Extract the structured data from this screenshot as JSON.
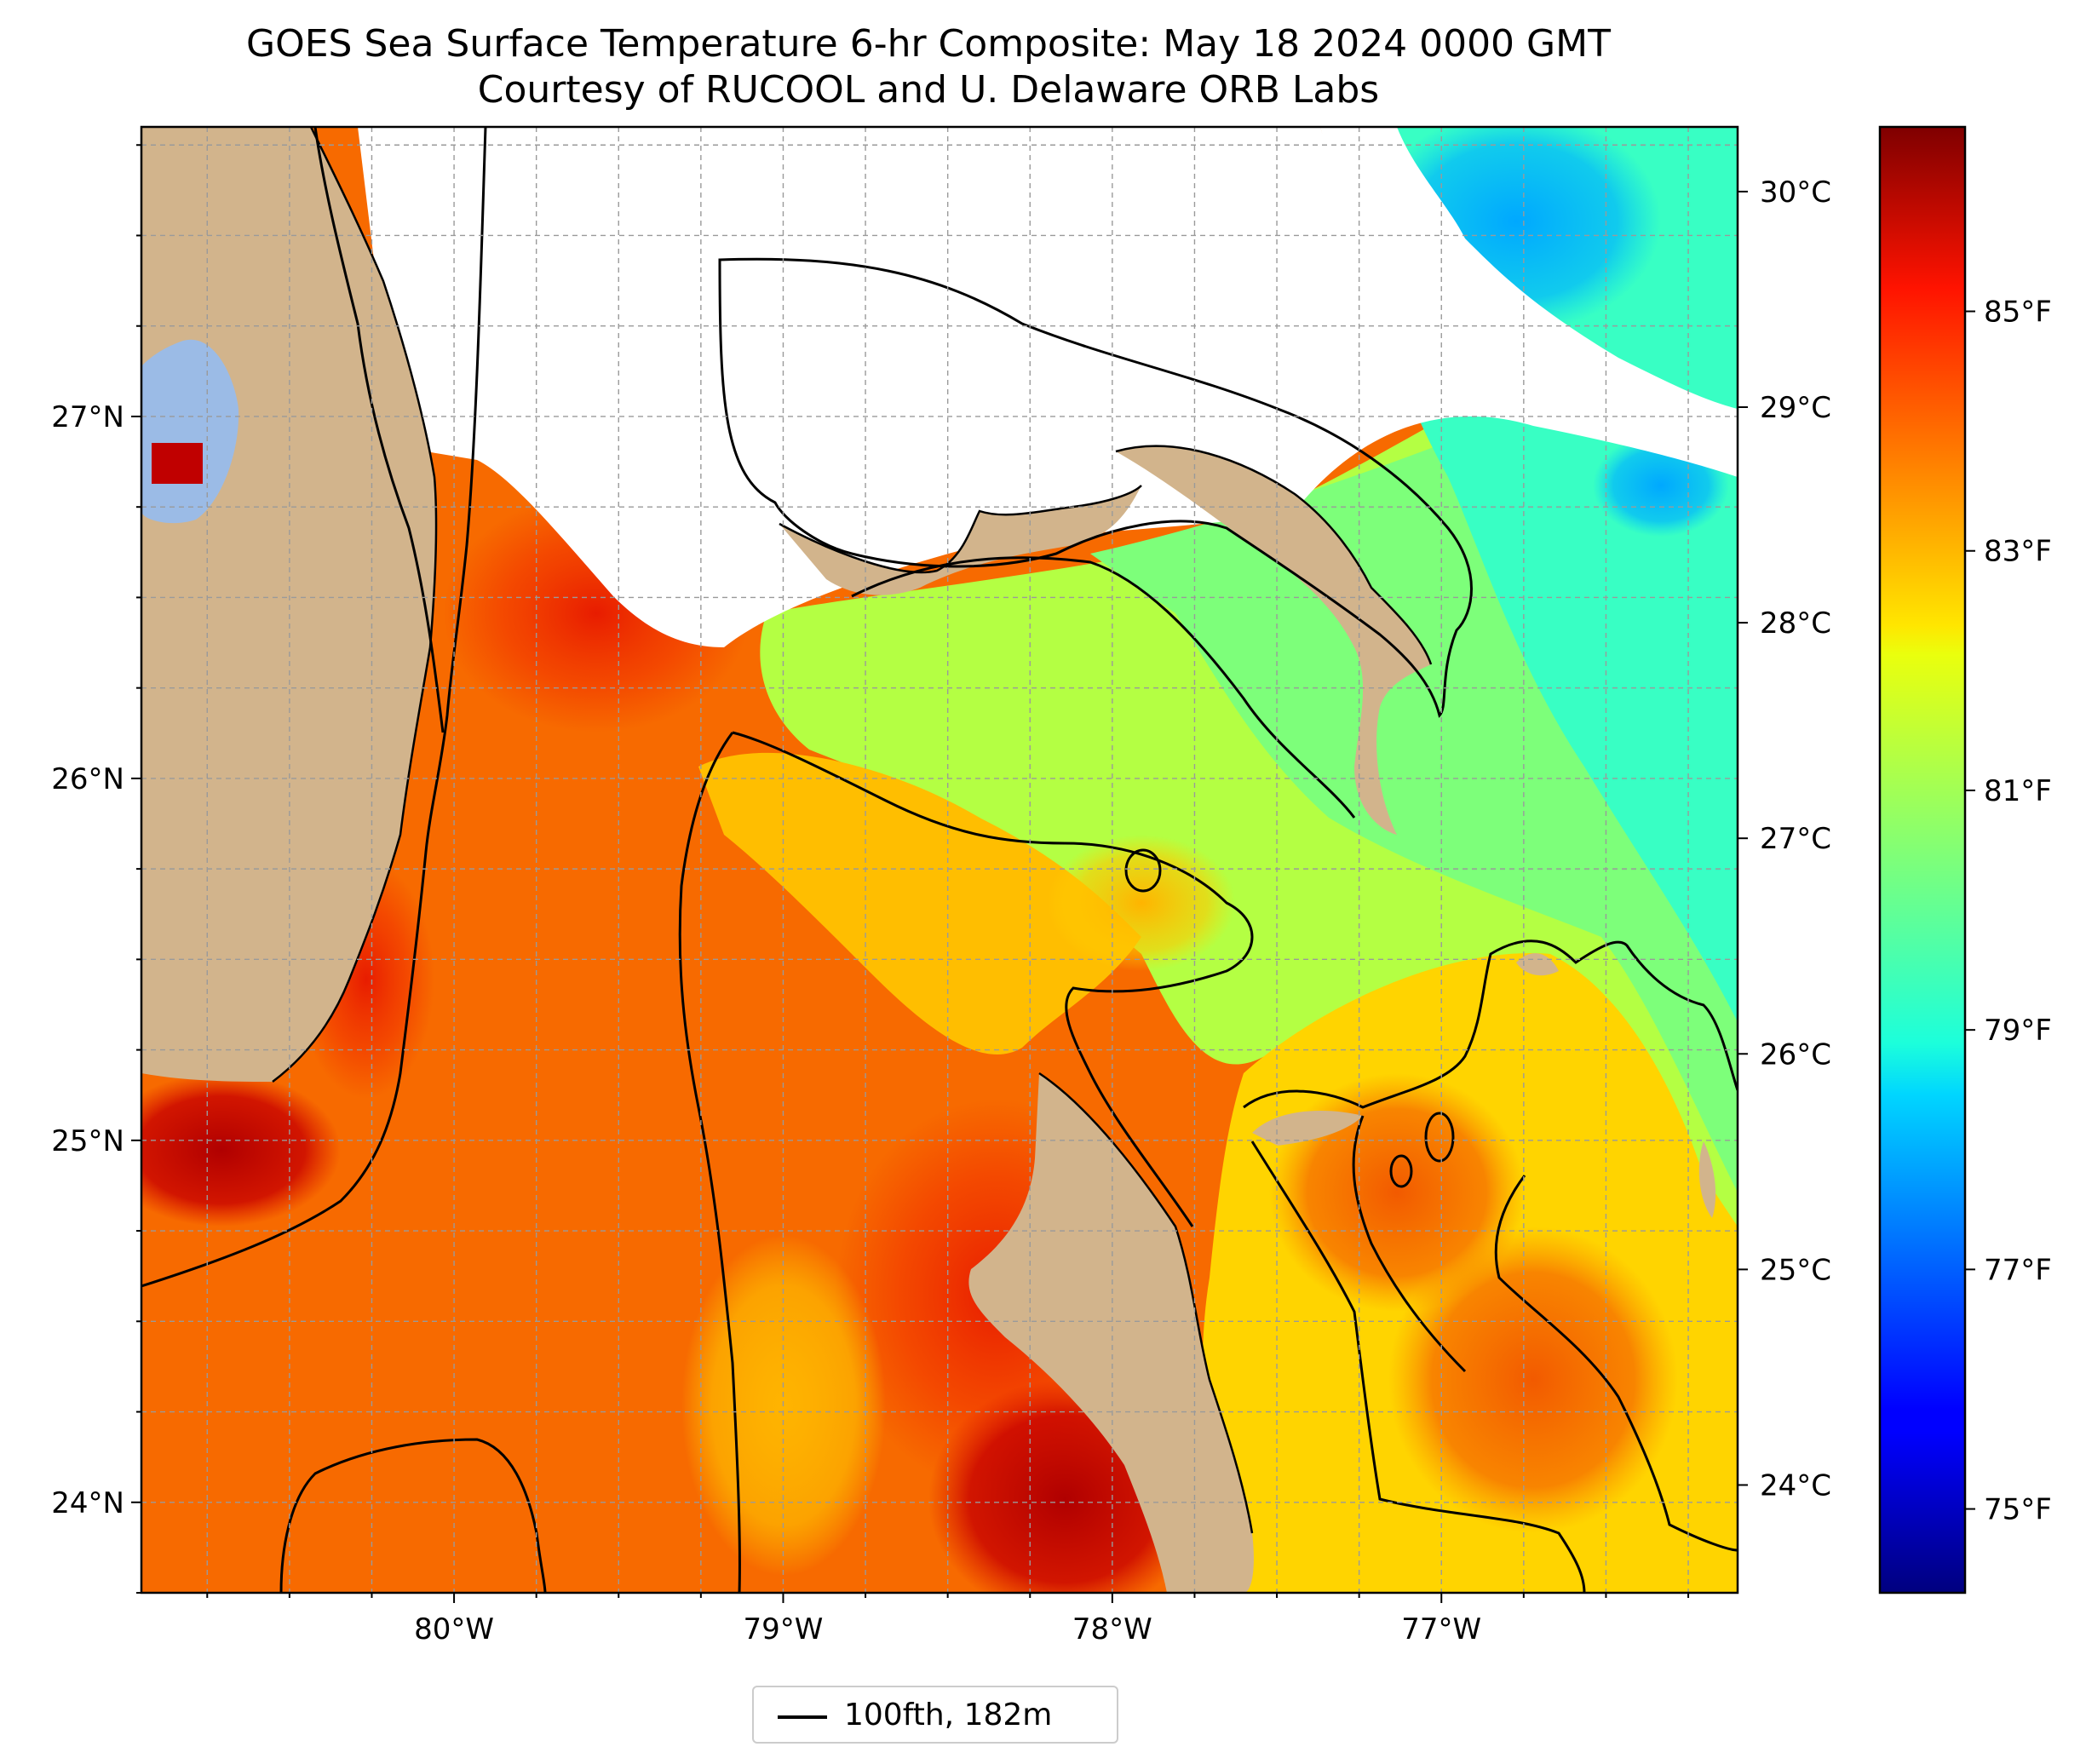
{
  "title": {
    "line1": "GOES Sea Surface Temperature 6-hr Composite: May 18 2024 0000 GMT",
    "line2": "Courtesy of RUCOOL and U. Delaware ORB Labs"
  },
  "map": {
    "lon_ticks": [
      "80°W",
      "79°W",
      "78°W",
      "77°W"
    ],
    "lat_ticks": [
      "24°N",
      "25°N",
      "26°N",
      "27°N"
    ],
    "extent": {
      "lon": [
        -80.95,
        -76.1
      ],
      "lat": [
        23.75,
        27.8
      ]
    },
    "gridlines": true,
    "colors": {
      "land": "#d2b48c",
      "lake": "#9bbbe6",
      "no_data": "#ffffff",
      "contour": "#000000"
    }
  },
  "colorbar": {
    "colormap": "jet",
    "range_c": [
      23.5,
      30.3
    ],
    "celsius_ticks": [
      "24°C",
      "25°C",
      "26°C",
      "27°C",
      "28°C",
      "29°C",
      "30°C"
    ],
    "fahrenheit_ticks": [
      "75°F",
      "77°F",
      "79°F",
      "81°F",
      "83°F",
      "85°F"
    ]
  },
  "legend": {
    "label": "100fth, 182m",
    "position": "bottom-center"
  }
}
